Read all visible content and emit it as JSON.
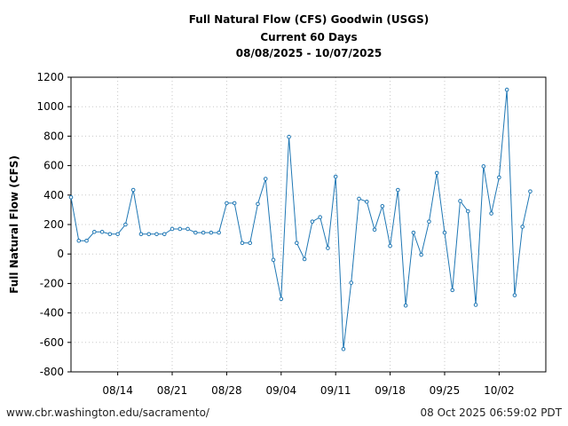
{
  "chart_data": {
    "type": "line",
    "title": "Full Natural Flow (CFS) Goodwin (USGS)",
    "subtitle": "Current 60 Days",
    "date_range": "08/08/2025 - 10/07/2025",
    "xlabel": "",
    "ylabel": "Full Natural Flow (CFS)",
    "ylim": [
      -800,
      1200
    ],
    "yticks": [
      -800,
      -600,
      -400,
      -200,
      0,
      200,
      400,
      600,
      800,
      1000,
      1200
    ],
    "xlim": [
      "08/08",
      "10/08"
    ],
    "xticks": [
      "08/14",
      "08/21",
      "08/28",
      "09/04",
      "09/11",
      "09/18",
      "09/25",
      "10/02"
    ],
    "grid": true,
    "line_color": "#1f77b4",
    "series": [
      {
        "x": [
          "08/08",
          "08/09",
          "08/10",
          "08/11",
          "08/12",
          "08/13",
          "08/14",
          "08/15",
          "08/16",
          "08/17",
          "08/18",
          "08/19",
          "08/20",
          "08/21",
          "08/22",
          "08/23",
          "08/24",
          "08/25",
          "08/26",
          "08/27",
          "08/28",
          "08/29",
          "08/30",
          "08/31",
          "09/01",
          "09/02",
          "09/03",
          "09/04",
          "09/05",
          "09/06",
          "09/07",
          "09/08",
          "09/09",
          "09/10",
          "09/11",
          "09/12",
          "09/13",
          "09/14",
          "09/15",
          "09/16",
          "09/17",
          "09/18",
          "09/19",
          "09/20",
          "09/21",
          "09/22",
          "09/23",
          "09/24",
          "09/25",
          "09/26",
          "09/27",
          "09/28",
          "09/29",
          "09/30",
          "10/01",
          "10/02",
          "10/03",
          "10/04",
          "10/05",
          "10/06"
        ],
        "values": [
          385,
          90,
          90,
          150,
          150,
          135,
          135,
          200,
          435,
          135,
          135,
          135,
          135,
          170,
          170,
          170,
          145,
          145,
          145,
          145,
          345,
          345,
          75,
          75,
          340,
          510,
          -40,
          -305,
          795,
          75,
          -35,
          220,
          250,
          40,
          525,
          -645,
          -195,
          375,
          355,
          165,
          325,
          55,
          435,
          -350,
          145,
          -5,
          220,
          550,
          145,
          -245,
          360,
          290,
          -345,
          595,
          275,
          520,
          1115,
          -280,
          185,
          425
        ]
      }
    ]
  },
  "footer": {
    "source_url": "www.cbr.washington.edu/sacramento/",
    "timestamp": "08 Oct 2025 06:59:02 PDT"
  }
}
